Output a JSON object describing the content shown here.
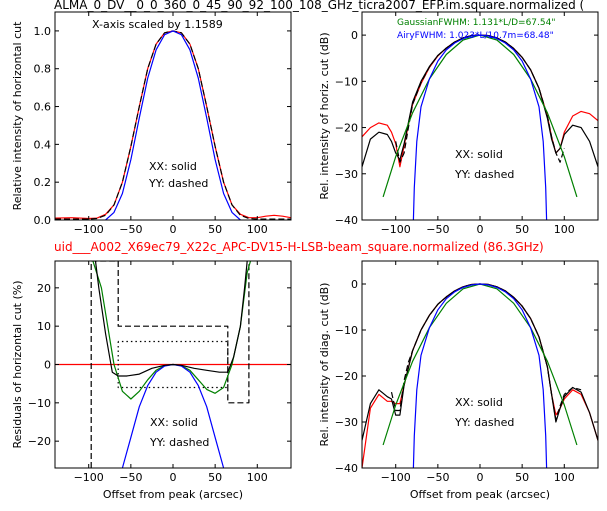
{
  "top_title": "ALMA_0_DV__0_0_360_0_45_90_92_100_108_GHz_ticra2007_EFP.im.square.normalized (",
  "mid_title": "uid___A002_X69ec79_X22c_APC-DV15-H-LSB-beam_square.normalized (86.3GHz)",
  "colors": {
    "data": "#ff0000",
    "model": "#000000",
    "gaussian": "#008000",
    "airy": "#0000ff",
    "zero": "#ff0000"
  },
  "chart_data": [
    {
      "id": "horiz_intensity",
      "type": "line",
      "ylabel": "Relative intensity of horizontal cut",
      "xlabel": "",
      "xlim": [
        -140,
        140
      ],
      "ylim": [
        0,
        1.1
      ],
      "xticks": [
        -100,
        -50,
        0,
        50,
        100
      ],
      "yticks": [
        0.0,
        0.2,
        0.4,
        0.6,
        0.8,
        1.0
      ],
      "ytick_labels": [
        "0.0",
        "0.2",
        "0.4",
        "0.6",
        "0.8",
        "1.0"
      ],
      "annotation": "X-axis scaled by 1.1589",
      "legend_text": [
        "XX: solid",
        "YY: dashed"
      ],
      "series": [
        {
          "color": "red",
          "style": "solid",
          "x": [
            -140,
            -120,
            -100,
            -90,
            -80,
            -70,
            -60,
            -50,
            -40,
            -30,
            -20,
            -10,
            0,
            10,
            20,
            30,
            40,
            50,
            60,
            70,
            80,
            90,
            100,
            110,
            120,
            130,
            140
          ],
          "y": [
            0.01,
            0.012,
            0.008,
            0.01,
            0.03,
            0.08,
            0.2,
            0.39,
            0.6,
            0.8,
            0.93,
            0.99,
            1.0,
            0.99,
            0.93,
            0.8,
            0.6,
            0.39,
            0.2,
            0.08,
            0.03,
            0.012,
            0.012,
            0.02,
            0.025,
            0.02,
            0.012
          ]
        },
        {
          "color": "black",
          "style": "dashed",
          "x": [
            -140,
            -120,
            -100,
            -90,
            -80,
            -70,
            -60,
            -50,
            -40,
            -30,
            -20,
            -10,
            0,
            10,
            20,
            30,
            40,
            50,
            60,
            70,
            80,
            90,
            100,
            110,
            120,
            130,
            140
          ],
          "y": [
            0.005,
            0.005,
            0.005,
            0.008,
            0.025,
            0.08,
            0.2,
            0.39,
            0.6,
            0.8,
            0.93,
            0.99,
            1.0,
            0.99,
            0.93,
            0.8,
            0.6,
            0.39,
            0.2,
            0.08,
            0.025,
            0.008,
            0.005,
            0.005,
            0.005,
            0.005,
            0.005
          ]
        },
        {
          "color": "blue",
          "style": "solid",
          "x": [
            -80,
            -70,
            -60,
            -50,
            -40,
            -30,
            -20,
            -10,
            0,
            10,
            20,
            30,
            40,
            50,
            60,
            70,
            80
          ],
          "y": [
            0.0,
            0.04,
            0.14,
            0.32,
            0.54,
            0.75,
            0.9,
            0.98,
            1.0,
            0.98,
            0.9,
            0.75,
            0.54,
            0.32,
            0.14,
            0.04,
            0.0
          ]
        }
      ]
    },
    {
      "id": "horiz_db",
      "type": "line",
      "ylabel": "Rel. intensity of horiz. cut (dB)",
      "xlabel": "",
      "xlim": [
        -140,
        140
      ],
      "ylim": [
        -40,
        5
      ],
      "xticks": [
        -100,
        -50,
        0,
        50,
        100
      ],
      "yticks": [
        -40,
        -30,
        -20,
        -10,
        0
      ],
      "ytick_labels": [
        "−40",
        "−30",
        "−20",
        "−10",
        "0"
      ],
      "legend_text": [
        "XX: solid",
        "YY: dashed"
      ],
      "fwhm_notes": [
        "GaussianFWHM: 1.131*L/D=67.54\"",
        "AiryFWHM: 1.023*L/10.7m=68.48\""
      ],
      "series": [
        {
          "color": "red",
          "style": "solid",
          "x": [
            -140,
            -130,
            -120,
            -110,
            -105,
            -100,
            -95,
            -90,
            -80,
            -70,
            -60,
            -50,
            -40,
            -30,
            -20,
            -10,
            0,
            10,
            20,
            30,
            40,
            50,
            60,
            70,
            80,
            85,
            90,
            95,
            100,
            110,
            120,
            130,
            140
          ],
          "y": [
            -22,
            -20,
            -19,
            -19.5,
            -21,
            -23.5,
            -28.5,
            -24,
            -15,
            -10.5,
            -7,
            -4.5,
            -2.8,
            -1.5,
            -0.6,
            -0.1,
            0,
            -0.1,
            -0.6,
            -1.5,
            -2.9,
            -4.8,
            -7.5,
            -11.5,
            -17.5,
            -22,
            -25.5,
            -24.5,
            -21,
            -17.5,
            -16.5,
            -17,
            -18.5
          ]
        },
        {
          "color": "black",
          "style": "solid",
          "x": [
            -140,
            -130,
            -120,
            -110,
            -105,
            -100,
            -95,
            -90,
            -80,
            -70,
            -60,
            -50,
            -40,
            -30,
            -20,
            -10,
            0,
            10,
            20,
            30,
            40,
            50,
            60,
            70,
            80,
            85,
            90,
            95,
            100,
            110,
            120,
            130,
            140
          ],
          "y": [
            -28.5,
            -22.5,
            -21,
            -21.5,
            -23,
            -25.5,
            -27,
            -23.5,
            -14.5,
            -10,
            -6.8,
            -4.4,
            -2.8,
            -1.5,
            -0.6,
            -0.1,
            0,
            -0.1,
            -0.6,
            -1.5,
            -2.9,
            -4.8,
            -7.5,
            -11.5,
            -18,
            -22.5,
            -25.5,
            -24.5,
            -21.5,
            -19.5,
            -20,
            -23,
            -28.5
          ]
        },
        {
          "color": "black",
          "style": "dashed",
          "x": [
            -100,
            -95,
            -90,
            -85,
            -80,
            -70,
            -60,
            -50,
            -40,
            -30,
            -20,
            -10,
            0,
            10,
            20,
            30,
            40,
            50,
            60,
            70,
            80,
            85,
            90,
            95,
            100
          ],
          "y": [
            -23,
            -27.5,
            -25.5,
            -20,
            -15,
            -10.3,
            -6.9,
            -4.4,
            -2.8,
            -1.5,
            -0.6,
            -0.1,
            0,
            -0.1,
            -0.6,
            -1.5,
            -2.9,
            -4.8,
            -7.5,
            -11.5,
            -17.5,
            -22,
            -25.5,
            -27.5,
            -24.5
          ]
        },
        {
          "color": "green",
          "style": "solid",
          "x": [
            -115,
            -100,
            -80,
            -60,
            -40,
            -20,
            0,
            20,
            40,
            60,
            80,
            100,
            115
          ],
          "y": [
            -35,
            -26.3,
            -16.8,
            -9.5,
            -4.2,
            -1.05,
            0,
            -1.05,
            -4.2,
            -9.5,
            -16.8,
            -26.3,
            -35
          ]
        },
        {
          "color": "blue",
          "style": "solid",
          "x": [
            -79,
            -78,
            -75,
            -70,
            -60,
            -50,
            -40,
            -30,
            -20,
            -10,
            0,
            10,
            20,
            30,
            40,
            50,
            60,
            70,
            75,
            78,
            79
          ],
          "y": [
            -40,
            -33,
            -23,
            -15.5,
            -9.5,
            -5.6,
            -3.2,
            -1.7,
            -0.75,
            -0.2,
            0,
            -0.2,
            -0.75,
            -1.7,
            -3.2,
            -5.6,
            -9.5,
            -15.5,
            -23,
            -33,
            -40
          ]
        }
      ]
    },
    {
      "id": "horiz_residuals",
      "type": "line",
      "ylabel": "Residuals of horizontal cut (%)",
      "xlabel": "Offset from peak (arcsec)",
      "xlim": [
        -140,
        140
      ],
      "ylim": [
        -27,
        27
      ],
      "xticks": [
        -100,
        -50,
        0,
        50,
        100
      ],
      "yticks": [
        -20,
        -10,
        0,
        10,
        20
      ],
      "ytick_labels": [
        "−20",
        "−10",
        "0",
        "10",
        "20"
      ],
      "legend_text": [
        "XX: solid",
        "YY: dashed"
      ],
      "series": [
        {
          "color": "red",
          "style": "solid",
          "x": [
            -140,
            140
          ],
          "y": [
            0,
            0
          ]
        },
        {
          "color": "black",
          "style": "dashed",
          "x": [
            -97,
            -97,
            -65,
            -65,
            65,
            65,
            90,
            90
          ],
          "y": [
            -27,
            27,
            27,
            10,
            10,
            -10,
            -10,
            27
          ]
        },
        {
          "color": "black",
          "style": "dotted",
          "x": [
            -65,
            -65,
            65,
            65,
            -65
          ],
          "y": [
            6,
            -6,
            -6,
            6,
            6
          ]
        },
        {
          "color": "green",
          "style": "solid",
          "x": [
            -95,
            -85,
            -70,
            -60,
            -50,
            -40,
            -30,
            -20,
            -10,
            0,
            10,
            20,
            30,
            40,
            50,
            60,
            70,
            80,
            88,
            92
          ],
          "y": [
            27,
            20,
            0,
            -7,
            -9,
            -7,
            -4,
            -1.5,
            -0.3,
            0,
            -0.3,
            -1.5,
            -4,
            -6.5,
            -7.5,
            -6,
            0,
            10,
            24,
            27
          ]
        },
        {
          "color": "blue",
          "style": "solid",
          "x": [
            -60,
            -50,
            -40,
            -30,
            -20,
            -10,
            0,
            10,
            20,
            30,
            40,
            50,
            60
          ],
          "y": [
            -27,
            -19,
            -11,
            -5.5,
            -2,
            -0.4,
            0,
            -0.4,
            -2,
            -5.5,
            -11,
            -19,
            -27
          ]
        },
        {
          "color": "black",
          "style": "solid",
          "x": [
            -92,
            -88,
            -80,
            -72,
            -65,
            -55,
            -40,
            -25,
            -10,
            0,
            10,
            25,
            40,
            55,
            65,
            72,
            80,
            85,
            88
          ],
          "y": [
            27,
            20,
            8,
            -2,
            -3,
            -3,
            -2.5,
            -1,
            -0.2,
            0,
            -0.2,
            -1,
            -1.5,
            -2,
            -2,
            2,
            10,
            20,
            27
          ]
        }
      ]
    },
    {
      "id": "diag_db",
      "type": "line",
      "ylabel": "Rel. intensity of diag. cut (dB)",
      "xlabel": "Offset from peak (arcsec)",
      "xlim": [
        -140,
        140
      ],
      "ylim": [
        -40,
        5
      ],
      "xticks": [
        -100,
        -50,
        0,
        50,
        100
      ],
      "yticks": [
        -40,
        -30,
        -20,
        -10,
        0
      ],
      "ytick_labels": [
        "−40",
        "−30",
        "−20",
        "−10",
        "0"
      ],
      "legend_text": [
        "XX: solid",
        "YY: dashed"
      ],
      "series": [
        {
          "color": "red",
          "style": "solid",
          "x": [
            -140,
            -130,
            -120,
            -110,
            -105,
            -100,
            -95,
            -90,
            -80,
            -70,
            -60,
            -50,
            -40,
            -30,
            -20,
            -10,
            0,
            10,
            20,
            30,
            40,
            50,
            60,
            70,
            80,
            85,
            90,
            95,
            100,
            110,
            120,
            130,
            140
          ],
          "y": [
            -40,
            -27,
            -24,
            -25.5,
            -25.5,
            -26,
            -26,
            -22,
            -14.5,
            -10,
            -6.8,
            -4.4,
            -2.8,
            -1.5,
            -0.6,
            -0.1,
            0,
            -0.1,
            -0.6,
            -1.5,
            -2.9,
            -4.8,
            -7.5,
            -11.5,
            -18,
            -24,
            -28.5,
            -27,
            -25,
            -23,
            -24,
            -28,
            -34
          ]
        },
        {
          "color": "black",
          "style": "solid",
          "x": [
            -140,
            -130,
            -120,
            -110,
            -105,
            -100,
            -95,
            -90,
            -80,
            -70,
            -60,
            -50,
            -40,
            -30,
            -20,
            -10,
            0,
            10,
            20,
            30,
            40,
            50,
            60,
            70,
            80,
            85,
            90,
            95,
            100,
            110,
            120,
            130,
            140
          ],
          "y": [
            -34,
            -26,
            -23,
            -24.5,
            -25,
            -28.5,
            -28.5,
            -22,
            -14.5,
            -10,
            -6.8,
            -4.4,
            -2.8,
            -1.5,
            -0.6,
            -0.1,
            0,
            -0.1,
            -0.6,
            -1.5,
            -2.9,
            -4.8,
            -7.5,
            -11.5,
            -18,
            -24,
            -30,
            -27,
            -24.5,
            -22.5,
            -23.5,
            -28,
            -34
          ]
        },
        {
          "color": "black",
          "style": "dashed",
          "x": [
            -105,
            -100,
            -95,
            -90,
            -85,
            -80,
            -70,
            -60,
            -50,
            -40,
            -30,
            -20,
            -10,
            0,
            10,
            20,
            30,
            40,
            50,
            60,
            70,
            80,
            85,
            90,
            95,
            100,
            110,
            120
          ],
          "y": [
            -23.5,
            -27.5,
            -27.5,
            -21,
            -17,
            -14.5,
            -10,
            -6.8,
            -4.4,
            -2.8,
            -1.5,
            -0.6,
            -0.1,
            0,
            -0.1,
            -0.6,
            -1.5,
            -2.9,
            -4.8,
            -7.5,
            -11.5,
            -18,
            -24,
            -29.5,
            -26.5,
            -24,
            -22.5,
            -23
          ]
        },
        {
          "color": "green",
          "style": "solid",
          "x": [
            -115,
            -100,
            -80,
            -60,
            -40,
            -20,
            0,
            20,
            40,
            60,
            80,
            100,
            115
          ],
          "y": [
            -35,
            -26.3,
            -16.8,
            -9.5,
            -4.2,
            -1.05,
            0,
            -1.05,
            -4.2,
            -9.5,
            -16.8,
            -26.3,
            -35
          ]
        },
        {
          "color": "blue",
          "style": "solid",
          "x": [
            -79,
            -78,
            -75,
            -70,
            -60,
            -50,
            -40,
            -30,
            -20,
            -10,
            0,
            10,
            20,
            30,
            40,
            50,
            60,
            70,
            75,
            78,
            79
          ],
          "y": [
            -40,
            -33,
            -23,
            -15.5,
            -9.5,
            -5.6,
            -3.2,
            -1.7,
            -0.75,
            -0.2,
            0,
            -0.2,
            -0.75,
            -1.7,
            -3.2,
            -5.6,
            -9.5,
            -15.5,
            -23,
            -33,
            -40
          ]
        }
      ]
    }
  ]
}
